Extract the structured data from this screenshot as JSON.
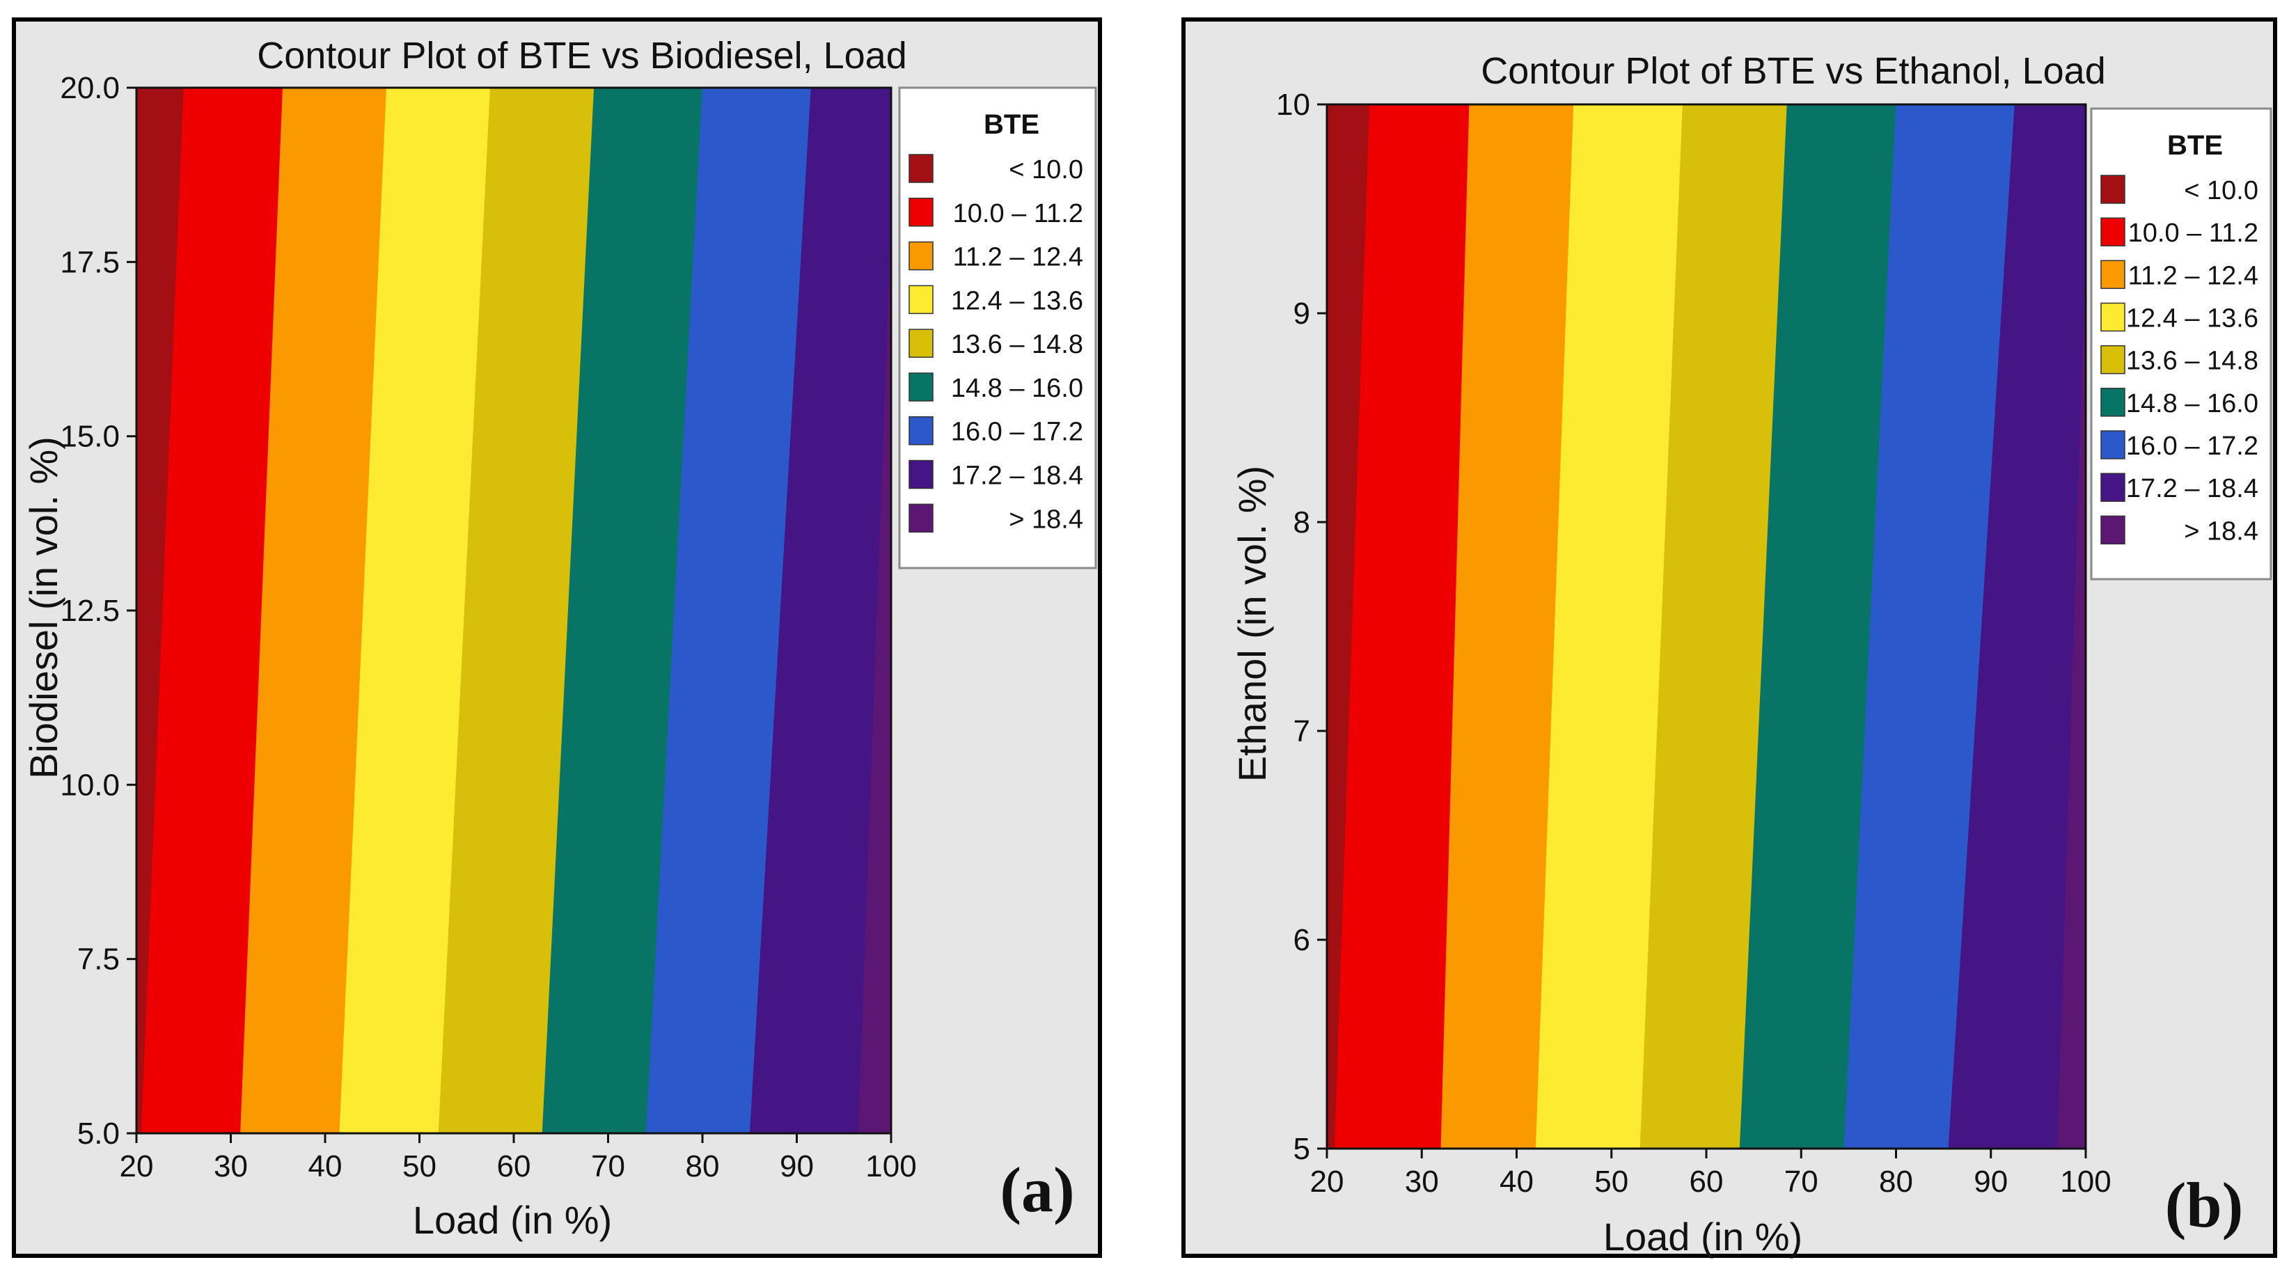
{
  "chart_data": [
    {
      "type": "contour",
      "panel_label": "(a)",
      "title": "Contour Plot of BTE vs Biodiesel, Load",
      "xlabel": "Load (in %)",
      "ylabel": "Biodiesel (in vol. %)",
      "xlim": [
        20,
        100
      ],
      "ylim": [
        5.0,
        20.0
      ],
      "xticks": [
        "20",
        "30",
        "40",
        "50",
        "60",
        "70",
        "80",
        "90",
        "100"
      ],
      "yticks": [
        "5.0",
        "7.5",
        "10.0",
        "12.5",
        "15.0",
        "17.5",
        "20.0"
      ],
      "legend_title": "BTE",
      "legend_position": "right",
      "boundaries": [
        {
          "level": 10.0,
          "load_at_ymin": 20.5,
          "load_at_ymax": 25.0
        },
        {
          "level": 11.2,
          "load_at_ymin": 31.0,
          "load_at_ymax": 35.5
        },
        {
          "level": 12.4,
          "load_at_ymin": 41.5,
          "load_at_ymax": 46.5
        },
        {
          "level": 13.6,
          "load_at_ymin": 52.0,
          "load_at_ymax": 57.5
        },
        {
          "level": 14.8,
          "load_at_ymin": 63.0,
          "load_at_ymax": 68.5
        },
        {
          "level": 16.0,
          "load_at_ymin": 74.0,
          "load_at_ymax": 80.0
        },
        {
          "level": 17.2,
          "load_at_ymin": 85.0,
          "load_at_ymax": 91.5
        },
        {
          "level": 18.4,
          "load_at_ymin": 96.5,
          "load_at_ymax": 100.5
        }
      ]
    },
    {
      "type": "contour",
      "panel_label": "(b)",
      "title": "Contour Plot of BTE vs Ethanol, Load",
      "xlabel": "Load (in %)",
      "ylabel": "Ethanol (in vol. %)",
      "xlim": [
        20,
        100
      ],
      "ylim": [
        5,
        10
      ],
      "xticks": [
        "20",
        "30",
        "40",
        "50",
        "60",
        "70",
        "80",
        "90",
        "100"
      ],
      "yticks": [
        "5",
        "6",
        "7",
        "8",
        "9",
        "10"
      ],
      "legend_title": "BTE",
      "legend_position": "right",
      "boundaries": [
        {
          "level": 10.0,
          "load_at_ymin": 20.8,
          "load_at_ymax": 24.5
        },
        {
          "level": 11.2,
          "load_at_ymin": 32.0,
          "load_at_ymax": 35.0
        },
        {
          "level": 12.4,
          "load_at_ymin": 42.0,
          "load_at_ymax": 46.0
        },
        {
          "level": 13.6,
          "load_at_ymin": 53.0,
          "load_at_ymax": 57.5
        },
        {
          "level": 14.8,
          "load_at_ymin": 63.5,
          "load_at_ymax": 68.5
        },
        {
          "level": 16.0,
          "load_at_ymin": 74.5,
          "load_at_ymax": 80.0
        },
        {
          "level": 17.2,
          "load_at_ymin": 85.5,
          "load_at_ymax": 92.5
        },
        {
          "level": 18.4,
          "load_at_ymin": 97.0,
          "load_at_ymax": 100.5
        }
      ]
    }
  ],
  "legend_entries": [
    {
      "label": "< 10.0",
      "color": "#a30f12"
    },
    {
      "label": "10.0 – 11.2",
      "color": "#ef0000"
    },
    {
      "label": "11.2 – 12.4",
      "color": "#fb9a00"
    },
    {
      "label": "12.4 – 13.6",
      "color": "#fdeb32"
    },
    {
      "label": "13.6 – 14.8",
      "color": "#d8c00a"
    },
    {
      "label": "14.8 – 16.0",
      "color": "#087466"
    },
    {
      "label": "16.0 – 17.2",
      "color": "#2b59cc"
    },
    {
      "label": "17.2 – 18.4",
      "color": "#461585"
    },
    {
      "label": "> 18.4",
      "color": "#5c1673"
    }
  ]
}
